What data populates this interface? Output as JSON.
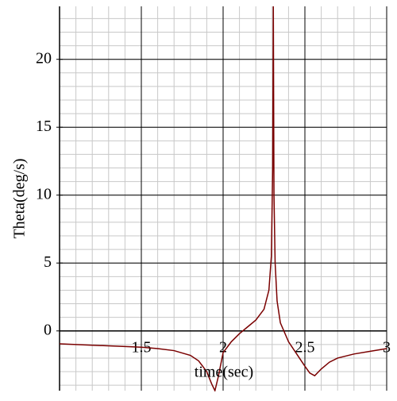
{
  "chart_data": {
    "type": "line",
    "xlabel": "time(sec)",
    "ylabel": "Theta(deg/s)",
    "x": [
      1.0,
      1.2,
      1.4,
      1.5,
      1.6,
      1.7,
      1.8,
      1.85,
      1.9,
      1.93,
      1.95,
      1.97,
      2.0,
      2.05,
      2.1,
      2.15,
      2.2,
      2.25,
      2.28,
      2.295,
      2.303,
      2.307,
      2.311,
      2.318,
      2.33,
      2.35,
      2.4,
      2.45,
      2.5,
      2.53,
      2.56,
      2.6,
      2.65,
      2.7,
      2.8,
      2.9,
      3.0
    ],
    "values": [
      -0.95,
      -1.05,
      -1.15,
      -1.2,
      -1.3,
      -1.45,
      -1.8,
      -2.2,
      -3.0,
      -3.9,
      -4.4,
      -3.4,
      -1.6,
      -0.8,
      -0.2,
      0.3,
      0.8,
      1.6,
      3.0,
      5.5,
      12,
      24,
      10,
      5,
      2.2,
      0.6,
      -0.8,
      -1.7,
      -2.6,
      -3.1,
      -3.3,
      -2.8,
      -2.3,
      -2.0,
      -1.7,
      -1.5,
      -1.3
    ],
    "color": "#7a0000",
    "xlim": [
      1.0,
      3.0
    ],
    "ylim": [
      -4.4,
      23.9
    ],
    "xticks": [
      1.5,
      2,
      2.5,
      3
    ],
    "yticks": [
      0,
      5,
      10,
      15,
      20
    ],
    "grid": true
  }
}
